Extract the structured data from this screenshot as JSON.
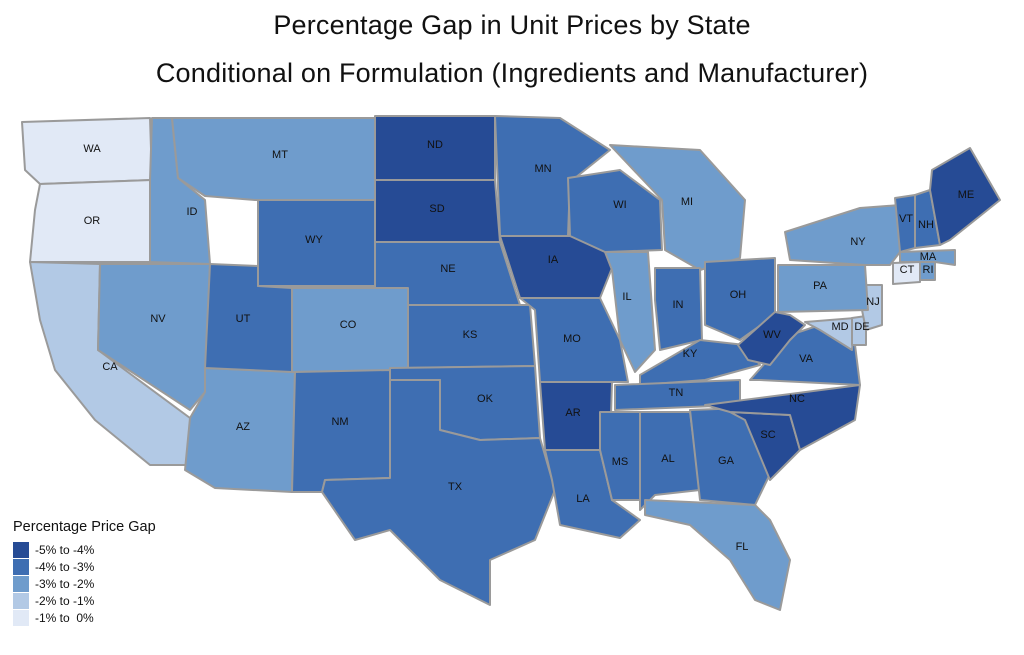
{
  "title": {
    "line1": "Percentage Gap in Unit Prices by State",
    "line2": "Conditional on Formulation (Ingredients and Manufacturer)"
  },
  "legend": {
    "title": "Percentage Price Gap",
    "items": [
      {
        "label": "-5% to -4%",
        "color": "#264b95"
      },
      {
        "label": "-4% to -3%",
        "color": "#3e6eb2"
      },
      {
        "label": "-3% to -2%",
        "color": "#6f9ccc"
      },
      {
        "label": "-2% to -1%",
        "color": "#b2c9e5"
      },
      {
        "label": "-1% to  0%",
        "color": "#e1e9f6"
      }
    ]
  },
  "chart_data": {
    "type": "choropleth",
    "scale": "binned",
    "bins": [
      "-5% to -4%",
      "-4% to -3%",
      "-3% to -2%",
      "-2% to -1%",
      "-1% to  0%"
    ],
    "states": [
      {
        "abbr": "WA",
        "bin": "-1% to  0%"
      },
      {
        "abbr": "OR",
        "bin": "-1% to  0%"
      },
      {
        "abbr": "CA",
        "bin": "-2% to -1%"
      },
      {
        "abbr": "ID",
        "bin": "-3% to -2%"
      },
      {
        "abbr": "MT",
        "bin": "-3% to -2%"
      },
      {
        "abbr": "NV",
        "bin": "-3% to -2%"
      },
      {
        "abbr": "AZ",
        "bin": "-3% to -2%"
      },
      {
        "abbr": "UT",
        "bin": "-4% to -3%"
      },
      {
        "abbr": "WY",
        "bin": "-4% to -3%"
      },
      {
        "abbr": "CO",
        "bin": "-3% to -2%"
      },
      {
        "abbr": "NM",
        "bin": "-4% to -3%"
      },
      {
        "abbr": "ND",
        "bin": "-5% to -4%"
      },
      {
        "abbr": "SD",
        "bin": "-5% to -4%"
      },
      {
        "abbr": "NE",
        "bin": "-4% to -3%"
      },
      {
        "abbr": "KS",
        "bin": "-4% to -3%"
      },
      {
        "abbr": "OK",
        "bin": "-4% to -3%"
      },
      {
        "abbr": "TX",
        "bin": "-4% to -3%"
      },
      {
        "abbr": "MN",
        "bin": "-4% to -3%"
      },
      {
        "abbr": "IA",
        "bin": "-5% to -4%"
      },
      {
        "abbr": "MO",
        "bin": "-4% to -3%"
      },
      {
        "abbr": "AR",
        "bin": "-5% to -4%"
      },
      {
        "abbr": "LA",
        "bin": "-4% to -3%"
      },
      {
        "abbr": "WI",
        "bin": "-4% to -3%"
      },
      {
        "abbr": "MI",
        "bin": "-3% to -2%"
      },
      {
        "abbr": "IL",
        "bin": "-3% to -2%"
      },
      {
        "abbr": "IN",
        "bin": "-4% to -3%"
      },
      {
        "abbr": "OH",
        "bin": "-4% to -3%"
      },
      {
        "abbr": "KY",
        "bin": "-4% to -3%"
      },
      {
        "abbr": "TN",
        "bin": "-4% to -3%"
      },
      {
        "abbr": "MS",
        "bin": "-4% to -3%"
      },
      {
        "abbr": "AL",
        "bin": "-4% to -3%"
      },
      {
        "abbr": "GA",
        "bin": "-4% to -3%"
      },
      {
        "abbr": "FL",
        "bin": "-3% to -2%"
      },
      {
        "abbr": "SC",
        "bin": "-5% to -4%"
      },
      {
        "abbr": "NC",
        "bin": "-5% to -4%"
      },
      {
        "abbr": "VA",
        "bin": "-4% to -3%"
      },
      {
        "abbr": "WV",
        "bin": "-5% to -4%"
      },
      {
        "abbr": "MD",
        "bin": "-2% to -1%"
      },
      {
        "abbr": "DE",
        "bin": "-2% to -1%"
      },
      {
        "abbr": "NJ",
        "bin": "-2% to -1%"
      },
      {
        "abbr": "PA",
        "bin": "-3% to -2%"
      },
      {
        "abbr": "NY",
        "bin": "-3% to -2%"
      },
      {
        "abbr": "CT",
        "bin": "-1% to  0%"
      },
      {
        "abbr": "RI",
        "bin": "-3% to -2%"
      },
      {
        "abbr": "MA",
        "bin": "-3% to -2%"
      },
      {
        "abbr": "VT",
        "bin": "-4% to -3%"
      },
      {
        "abbr": "NH",
        "bin": "-4% to -3%"
      },
      {
        "abbr": "ME",
        "bin": "-5% to -4%"
      }
    ]
  }
}
